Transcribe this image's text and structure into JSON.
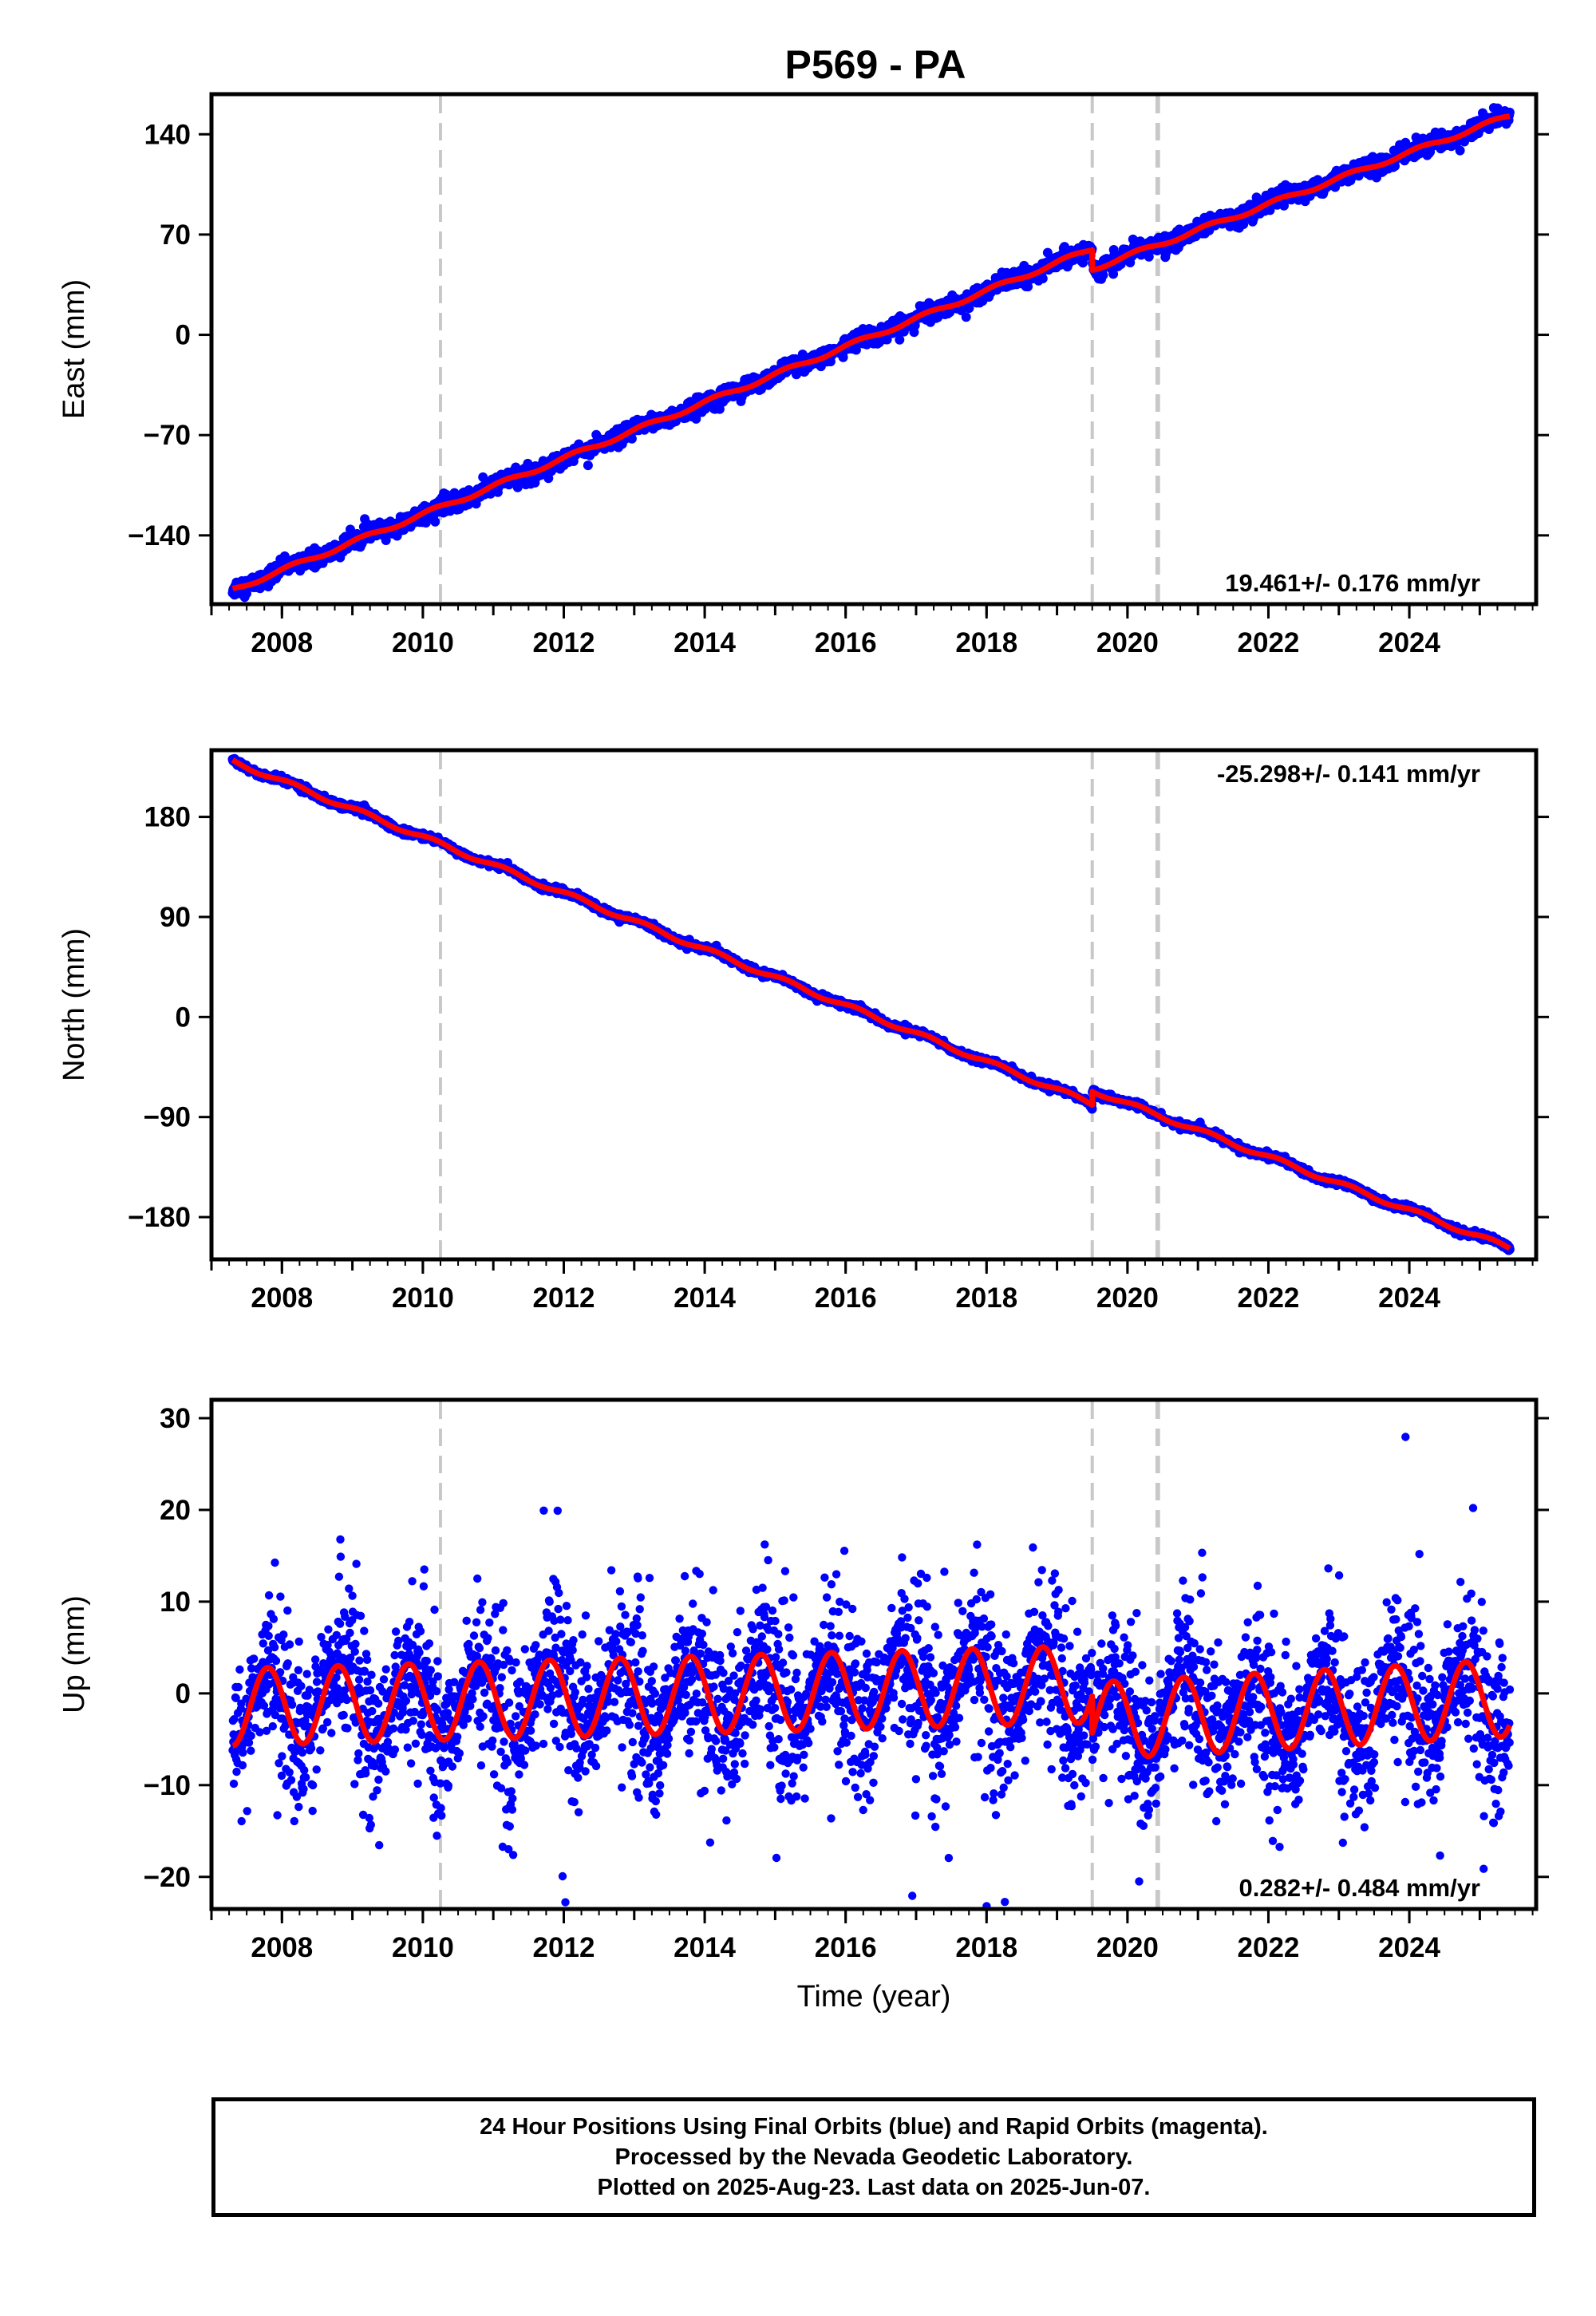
{
  "title": "P569 - PA",
  "footer": {
    "line1": "24 Hour Positions Using Final Orbits (blue) and Rapid Orbits (magenta).",
    "line2": "Processed by the Nevada Geodetic Laboratory.",
    "line3": "Plotted on 2025-Aug-23. Last data on 2025-Jun-07."
  },
  "colors": {
    "points": "#0000ff",
    "model": "#ff0000",
    "steps": "#c8c8c8",
    "axes": "#000000"
  },
  "chart_data": [
    {
      "type": "scatter",
      "component": "east",
      "ylabel": "East (mm)",
      "xlim": [
        2007.0,
        2025.8
      ],
      "ylim": [
        -188,
        168
      ],
      "yticks": [
        140,
        70,
        0,
        -70,
        -140
      ],
      "xticks": [
        2008,
        2010,
        2012,
        2014,
        2016,
        2018,
        2020,
        2022,
        2024
      ],
      "rate_label": "19.461+/- 0.176 mm/yr",
      "rate_position": "bottom-right",
      "step_lines": [
        2010.25,
        2019.5,
        2020.42,
        2020.44
      ],
      "data_start": 2007.3,
      "data_end": 2025.43,
      "model_anchor": [
        [
          2007.3,
          -178
        ],
        [
          2019.5,
          60
        ],
        [
          2019.5,
          46
        ],
        [
          2025.43,
          153
        ]
      ],
      "seasonal_amplitude": 1.5,
      "scatter_sigma": 3
    },
    {
      "type": "scatter",
      "component": "north",
      "ylabel": "North (mm)",
      "xlim": [
        2007.0,
        2025.8
      ],
      "ylim": [
        -218,
        240
      ],
      "yticks": [
        180,
        90,
        0,
        -90,
        -180
      ],
      "xticks": [
        2008,
        2010,
        2012,
        2014,
        2016,
        2018,
        2020,
        2022,
        2024
      ],
      "rate_label": "-25.298+/- 0.141 mm/yr",
      "rate_position": "top-right",
      "step_lines": [
        2010.25,
        2019.5,
        2020.42,
        2020.44
      ],
      "data_start": 2007.3,
      "data_end": 2025.43,
      "model_anchor": [
        [
          2007.3,
          230
        ],
        [
          2019.5,
          -78
        ],
        [
          2019.5,
          -66
        ],
        [
          2025.43,
          -208
        ]
      ],
      "seasonal_amplitude": 2,
      "scatter_sigma": 1.5
    },
    {
      "type": "scatter",
      "component": "up",
      "ylabel": "Up (mm)",
      "xlabel": "Time (year)",
      "xlim": [
        2007.0,
        2025.8
      ],
      "ylim": [
        -23.5,
        32
      ],
      "yticks": [
        30,
        20,
        10,
        0,
        -10,
        -20
      ],
      "xticks": [
        2008,
        2010,
        2012,
        2014,
        2016,
        2018,
        2020,
        2022,
        2024
      ],
      "rate_label": "0.282+/- 0.484 mm/yr",
      "rate_position": "bottom-right",
      "step_lines": [
        2010.25,
        2019.5,
        2020.42,
        2020.44
      ],
      "data_start": 2007.3,
      "data_end": 2025.43,
      "model_anchor": [
        [
          2007.3,
          -1.5
        ],
        [
          2019.5,
          1.0
        ],
        [
          2019.5,
          -3.0
        ],
        [
          2025.43,
          -0.5
        ]
      ],
      "seasonal_amplitude": 4.2,
      "scatter_sigma": 4
    }
  ]
}
